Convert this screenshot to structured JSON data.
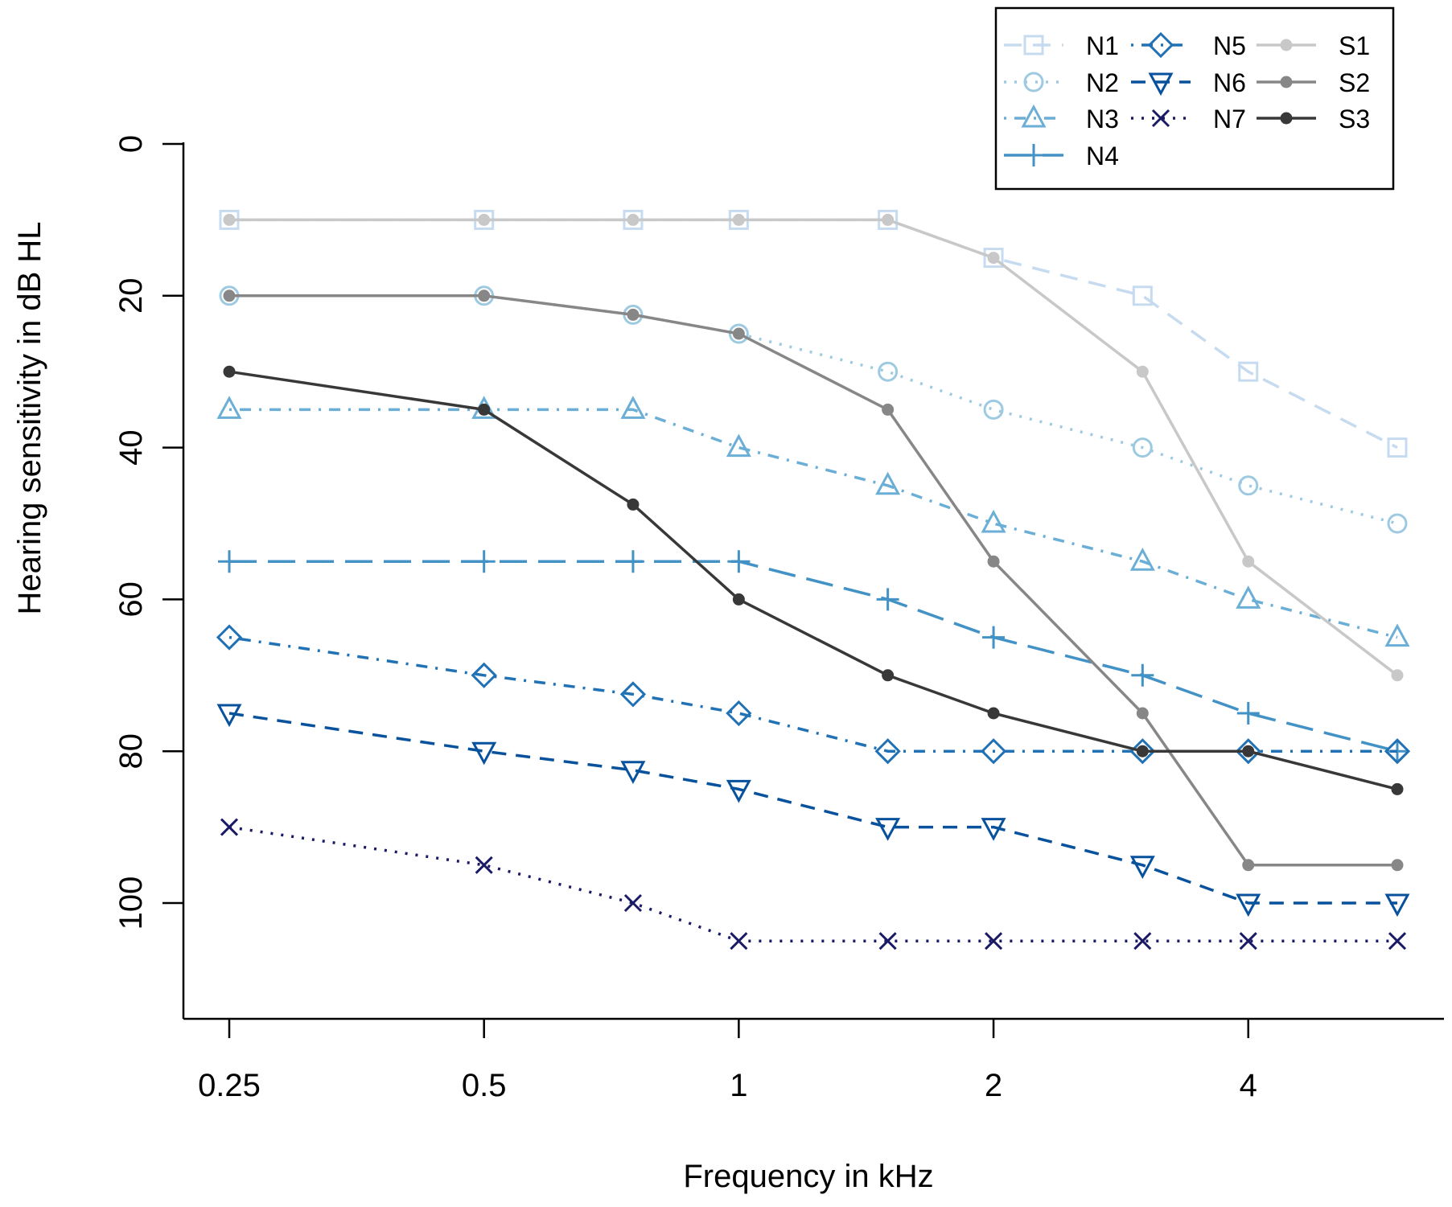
{
  "chart_data": {
    "type": "line",
    "title": "",
    "xlabel": "Frequency in kHz",
    "ylabel": "Hearing sensitivity in dB HL",
    "x_positions": [
      0.25,
      0.5,
      0.75,
      1,
      1.5,
      2,
      3,
      4,
      6
    ],
    "x_tick_values": [
      0.25,
      0.5,
      1,
      2,
      4
    ],
    "x_tick_labels": [
      "0.25",
      "0.5",
      "1",
      "2",
      "4"
    ],
    "x_scale": "log2",
    "xlim": [
      0.25,
      6
    ],
    "y_tick_values": [
      0,
      20,
      40,
      60,
      80,
      100
    ],
    "y_tick_labels": [
      "0",
      "20",
      "40",
      "60",
      "80",
      "100"
    ],
    "ylim": [
      0,
      115
    ],
    "y_inverted": true,
    "series": [
      {
        "name": "N1",
        "color": "#c6dbef",
        "dash": "long",
        "marker": "square",
        "values": [
          10,
          10,
          10,
          10,
          10,
          15,
          20,
          30,
          40
        ]
      },
      {
        "name": "N2",
        "color": "#9ecae1",
        "dash": "dotted",
        "marker": "circle",
        "values": [
          20,
          20,
          22.5,
          25,
          30,
          35,
          40,
          45,
          50
        ]
      },
      {
        "name": "N3",
        "color": "#6baed6",
        "dash": "dotdash",
        "marker": "triangle-up",
        "values": [
          35,
          35,
          35,
          40,
          45,
          50,
          55,
          60,
          65
        ]
      },
      {
        "name": "N4",
        "color": "#4292c6",
        "dash": "longdash",
        "marker": "plus",
        "values": [
          55,
          55,
          55,
          55,
          60,
          65,
          70,
          75,
          80
        ]
      },
      {
        "name": "N5",
        "color": "#2171b5",
        "dash": "dotdash",
        "marker": "diamond",
        "values": [
          65,
          70,
          72.5,
          75,
          80,
          80,
          80,
          80,
          80
        ]
      },
      {
        "name": "N6",
        "color": "#08519c",
        "dash": "dashed",
        "marker": "triangle-down",
        "values": [
          75,
          80,
          82.5,
          85,
          90,
          90,
          95,
          100,
          100
        ]
      },
      {
        "name": "N7",
        "color": "#1a1a66",
        "dash": "dotted",
        "marker": "cross",
        "values": [
          90,
          95,
          100,
          105,
          105,
          105,
          105,
          105,
          105
        ]
      },
      {
        "name": "S1",
        "color": "#c8c8c8",
        "dash": "solid",
        "marker": "dot",
        "values": [
          10,
          10,
          10,
          10,
          10,
          15,
          30,
          55,
          70
        ]
      },
      {
        "name": "S2",
        "color": "#878787",
        "dash": "solid",
        "marker": "dot",
        "values": [
          20,
          20,
          22.5,
          25,
          35,
          55,
          75,
          95,
          95
        ]
      },
      {
        "name": "S3",
        "color": "#383838",
        "dash": "solid",
        "marker": "dot",
        "values": [
          30,
          35,
          47.5,
          60,
          70,
          75,
          80,
          80,
          85
        ]
      }
    ],
    "legend": {
      "position": "top-right",
      "columns": [
        [
          "N1",
          "N2",
          "N3",
          "N4"
        ],
        [
          "N5",
          "N6",
          "N7"
        ],
        [
          "S1",
          "S2",
          "S3"
        ]
      ]
    },
    "grid": false
  }
}
